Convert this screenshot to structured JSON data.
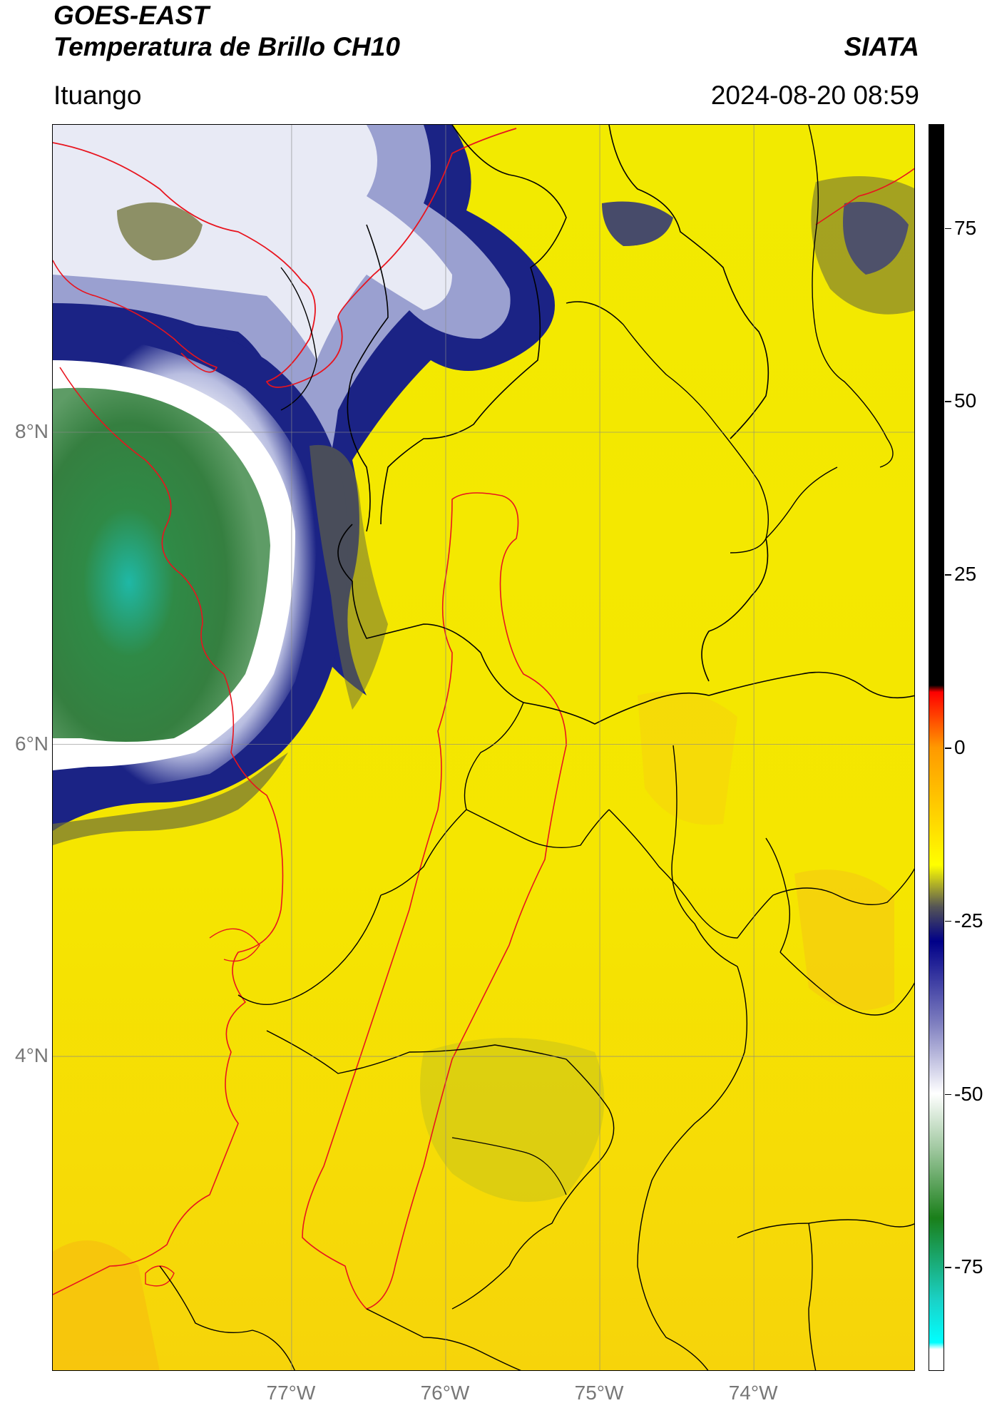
{
  "header": {
    "title_line1": "GOES-EAST",
    "title_line2": "Temperatura de Brillo CH10",
    "brand": "SIATA",
    "location": "Ituango",
    "timestamp": "2024-08-20 08:59"
  },
  "map": {
    "lon_range": [
      -78.55,
      -72.95
    ],
    "lat_range": [
      1.98,
      9.97
    ],
    "colors": {
      "warm_background": "#f2e800",
      "cold_cloud_deep": "#141a7a",
      "cold_cloud_light": "#d8dcee",
      "coldest_core": "#2f8a46",
      "basin_outline": "#e8141e",
      "department_outline": "#000000"
    },
    "lat_ticks": [
      {
        "value": 8,
        "label": "8°N"
      },
      {
        "value": 6,
        "label": "6°N"
      },
      {
        "value": 4,
        "label": "4°N"
      }
    ],
    "lon_ticks": [
      {
        "value": -77,
        "label": "77°W"
      },
      {
        "value": -76,
        "label": "76°W"
      },
      {
        "value": -75,
        "label": "75°W"
      },
      {
        "value": -74,
        "label": "74°W"
      }
    ]
  },
  "colorbar": {
    "range": [
      -90,
      90
    ],
    "ticks": [
      {
        "value": 75,
        "label": "75"
      },
      {
        "value": 50,
        "label": "50"
      },
      {
        "value": 25,
        "label": "25"
      },
      {
        "value": 0,
        "label": "0"
      },
      {
        "value": -25,
        "label": "-25"
      },
      {
        "value": -50,
        "label": "-50"
      },
      {
        "value": -75,
        "label": "-75"
      }
    ],
    "stops": [
      {
        "value": 90,
        "color": "#000000"
      },
      {
        "value": 9,
        "color": "#000000"
      },
      {
        "value": 8,
        "color": "#ff0000"
      },
      {
        "value": 0,
        "color": "#ff9900"
      },
      {
        "value": -10,
        "color": "#ffd400"
      },
      {
        "value": -17,
        "color": "#ffff00"
      },
      {
        "value": -23,
        "color": "#555555"
      },
      {
        "value": -28,
        "color": "#000088"
      },
      {
        "value": -40,
        "color": "#8080c0"
      },
      {
        "value": -50,
        "color": "#ffffff"
      },
      {
        "value": -58,
        "color": "#a0c8a0"
      },
      {
        "value": -68,
        "color": "#1a7f1a"
      },
      {
        "value": -80,
        "color": "#1ad2c8"
      },
      {
        "value": -86,
        "color": "#00ffff"
      },
      {
        "value": -87,
        "color": "#ffffff"
      },
      {
        "value": -90,
        "color": "#ffffff"
      }
    ]
  }
}
